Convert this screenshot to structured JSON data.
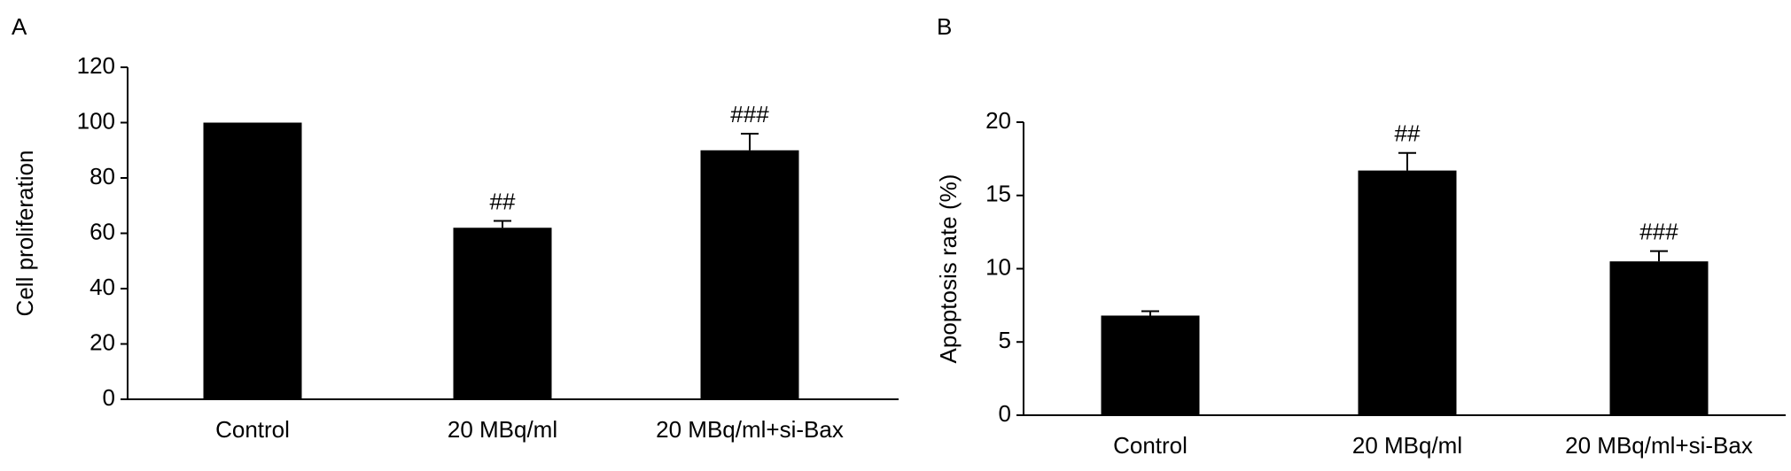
{
  "chart_data": [
    {
      "type": "bar",
      "panel_label": "A",
      "y_label": "Cell proliferation",
      "categories": [
        "Control",
        "20 MBq/ml",
        "20 MBq/ml+si-Bax"
      ],
      "values": [
        100,
        62,
        90
      ],
      "errors": [
        0,
        2.5,
        6
      ],
      "annotations": [
        null,
        "##",
        "###"
      ],
      "color": "#000000",
      "ylim": [
        0,
        120
      ],
      "yticks": [
        0,
        20,
        40,
        60,
        80,
        100,
        120
      ]
    },
    {
      "type": "bar",
      "panel_label": "B",
      "y_label": "Apoptosis rate (%)",
      "categories": [
        "Control",
        "20 MBq/ml",
        "20 MBq/ml+si-Bax"
      ],
      "values": [
        6.8,
        16.7,
        10.5
      ],
      "errors": [
        0.3,
        1.2,
        0.7
      ],
      "annotations": [
        null,
        "##",
        "###"
      ],
      "color": "#000000",
      "ylim": [
        0,
        20
      ],
      "yticks": [
        0,
        5,
        10,
        15,
        20
      ]
    }
  ]
}
